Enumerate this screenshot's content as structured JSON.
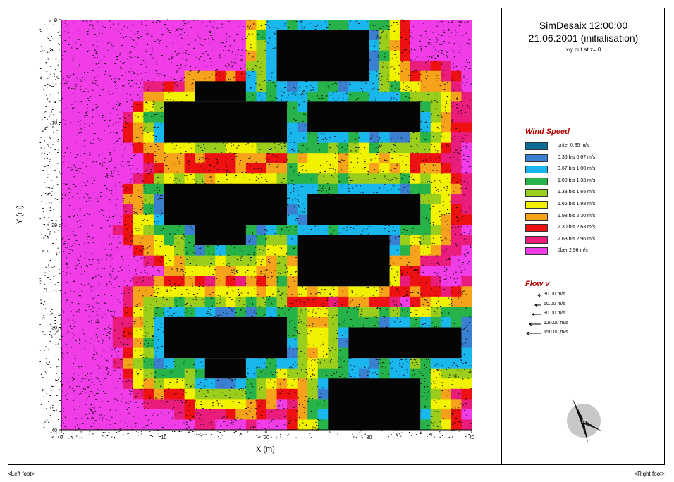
{
  "header": {
    "title_line1": "SimDesaix 12:00:00",
    "title_line2": "21.06.2001 (initialisation)",
    "subtitle": "x/y cut at z= 0"
  },
  "legend": {
    "wind_title": "Wind Speed",
    "wind_items": [
      {
        "label": "unter 0.35 m/s",
        "color": "#0b6a96"
      },
      {
        "label": "0.35 bis 0.67 m/s",
        "color": "#3a7fd0"
      },
      {
        "label": "0.67 bis 1.00 m/s",
        "color": "#1ab7ef"
      },
      {
        "label": "1.00 bis 1.33 m/s",
        "color": "#27b24a"
      },
      {
        "label": "1.33 bis 1.65 m/s",
        "color": "#9acd1c"
      },
      {
        "label": "1.65 bis 1.98 m/s",
        "color": "#f2f200"
      },
      {
        "label": "1.98 bis 2.30 m/s",
        "color": "#f6a21a"
      },
      {
        "label": "2.30 bis 2.63 m/s",
        "color": "#ee1111"
      },
      {
        "label": "2.63 bis 2.96 m/s",
        "color": "#ea1c7c"
      },
      {
        "label": "über 2.96 m/s",
        "color": "#f03de8"
      }
    ],
    "flow_title": "Flow v",
    "flow_items": [
      "30.00 m/s",
      "60.00 m/s",
      "90.00 m/s",
      "120.00 m/s",
      "150.00 m/s"
    ]
  },
  "footer": {
    "left": "<Left foot>",
    "right": "<Right foot>"
  },
  "chart_data": {
    "type": "heatmap",
    "title": "",
    "xlabel": "X (m)",
    "ylabel": "Y (m)",
    "xlim": [
      0,
      40
    ],
    "ylim": [
      0,
      40
    ],
    "x_ticks": [
      "0",
      "10",
      "20",
      "30",
      "40"
    ],
    "y_ticks": [
      "0",
      "10",
      "20",
      "30",
      "40"
    ],
    "buildings": [
      {
        "x0": 21,
        "x1": 30,
        "y0": 1,
        "y1": 6
      },
      {
        "x0": 13,
        "x1": 18,
        "y0": 6,
        "y1": 8
      },
      {
        "x0": 10,
        "x1": 22,
        "y0": 8,
        "y1": 12
      },
      {
        "x0": 24,
        "x1": 35,
        "y0": 8,
        "y1": 11
      },
      {
        "x0": 10,
        "x1": 22,
        "y0": 16,
        "y1": 20
      },
      {
        "x0": 13,
        "x1": 18,
        "y0": 20,
        "y1": 22
      },
      {
        "x0": 24,
        "x1": 35,
        "y0": 17,
        "y1": 20
      },
      {
        "x0": 23,
        "x1": 32,
        "y0": 21,
        "y1": 26
      },
      {
        "x0": 10,
        "x1": 22,
        "y0": 29,
        "y1": 33
      },
      {
        "x0": 14,
        "x1": 18,
        "y0": 33,
        "y1": 35
      },
      {
        "x0": 28,
        "x1": 39,
        "y0": 30,
        "y1": 33
      },
      {
        "x0": 26,
        "x1": 35,
        "y0": 35,
        "y1": 40
      }
    ],
    "grid": false
  }
}
